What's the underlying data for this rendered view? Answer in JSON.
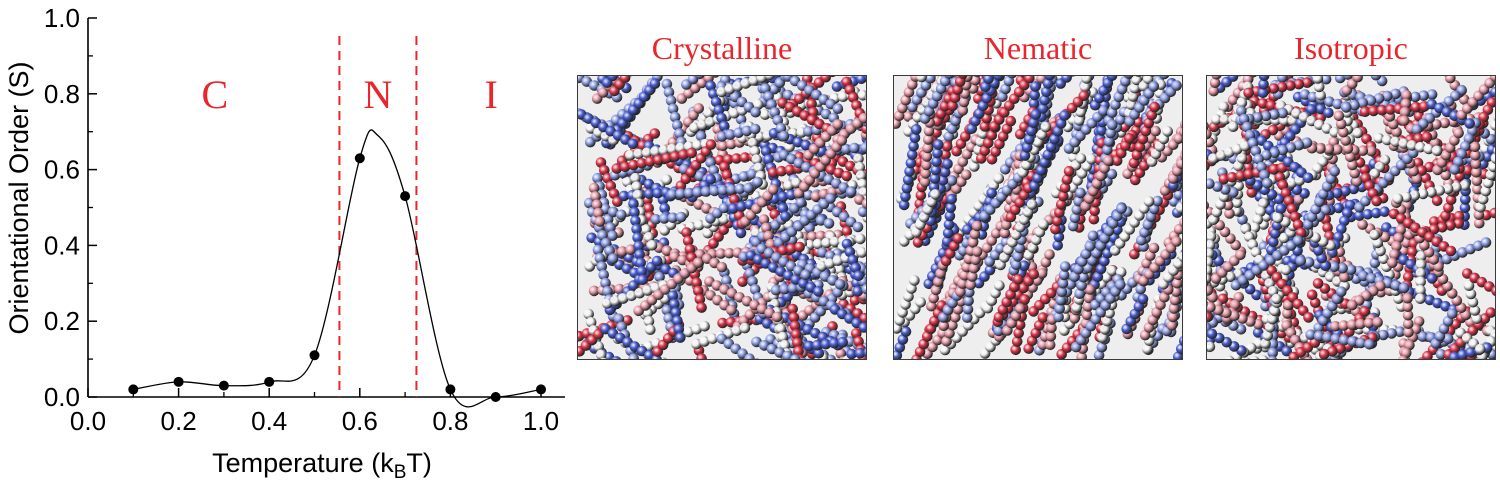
{
  "chart_data": {
    "type": "scatter",
    "title": "",
    "xlabel_main": "Temperature (k",
    "xlabel_sub": "B",
    "xlabel_end": "T)",
    "ylabel": "Orientational Order (S)",
    "xlim": [
      0.0,
      1.05
    ],
    "ylim": [
      0.0,
      1.0
    ],
    "x_ticks": [
      "0.0",
      "0.2",
      "0.4",
      "0.6",
      "0.8",
      "1.0"
    ],
    "y_ticks": [
      "0.0",
      "0.2",
      "0.4",
      "0.6",
      "0.8",
      "1.0"
    ],
    "series": [
      {
        "x": [
          0.1,
          0.2,
          0.3,
          0.4,
          0.5,
          0.6,
          0.7,
          0.8,
          0.9,
          1.0
        ],
        "y": [
          0.02,
          0.04,
          0.03,
          0.04,
          0.11,
          0.63,
          0.53,
          0.02,
          0.0,
          0.02
        ]
      }
    ],
    "phase_boundaries": [
      0.555,
      0.725
    ],
    "phase_labels": [
      {
        "text": "C",
        "x": 0.28
      },
      {
        "text": "N",
        "x": 0.64
      },
      {
        "text": "I",
        "x": 0.89
      }
    ],
    "grid": false
  },
  "panels": [
    {
      "title": "Crystalline"
    },
    {
      "title": "Nematic"
    },
    {
      "title": "Isotropic"
    }
  ],
  "colors": {
    "accent": "#e8262b",
    "dot": "#000000",
    "bead_blue": "#4a5fd6",
    "bead_red": "#e0364a",
    "bead_pink": "#e89aa6",
    "bead_white": "#f2f2f2"
  }
}
